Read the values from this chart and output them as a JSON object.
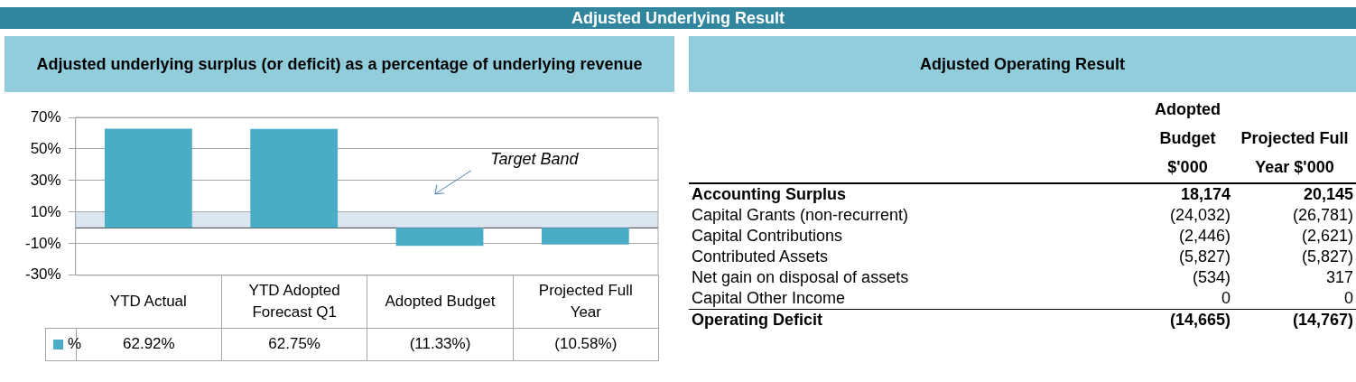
{
  "chart_data": [
    {
      "type": "bar",
      "title": "Adjusted Underlying Result",
      "subtitle": "Adjusted underlying surplus (or deficit) as a percentage of underlying revenue",
      "categories": [
        "YTD Actual",
        "YTD Adopted Forecast Q1",
        "Adopted Budget",
        "Projected Full Year"
      ],
      "series": [
        {
          "name": "%",
          "color": "#4bacc6",
          "values": [
            62.92,
            62.75,
            -11.33,
            -10.58
          ],
          "value_labels": [
            "62.92%",
            "62.75%",
            "(11.33%)",
            "(10.58%)"
          ]
        }
      ],
      "ylim": [
        -30,
        70
      ],
      "yticks": [
        {
          "value": 70,
          "label": "70%"
        },
        {
          "value": 50,
          "label": "50%"
        },
        {
          "value": 30,
          "label": "30%"
        },
        {
          "value": 10,
          "label": "10%"
        },
        {
          "value": -10,
          "label": "-10%"
        },
        {
          "value": -30,
          "label": "-30%"
        }
      ],
      "grid": "y",
      "legend": "bottom",
      "bands": [
        {
          "axis": "y",
          "from": 0,
          "to": 10,
          "label": "Target Band",
          "color": "#dce6f1"
        }
      ]
    },
    {
      "type": "other",
      "title": "Adjusted Operating Result",
      "categories": [
        "Accounting Surplus",
        "Capital Grants (non-recurrent)",
        "Capital Contributions",
        "Contributed Assets",
        "Net gain on disposal of assets",
        "Capital Other Income",
        "Operating Deficit"
      ],
      "series": [
        {
          "name": "Adopted Budget $'000",
          "values": [
            18174,
            -24032,
            -2446,
            -5827,
            -534,
            0,
            -14665
          ],
          "value_labels": [
            "18,174",
            "(24,032)",
            "(2,446)",
            "(5,827)",
            "(534)",
            "0",
            "(14,665)"
          ]
        },
        {
          "name": "Projected Full Year $'000",
          "values": [
            20145,
            -26781,
            -2621,
            -5827,
            317,
            0,
            -14767
          ],
          "value_labels": [
            "20,145",
            "(26,781)",
            "(2,621)",
            "(5,827)",
            "317",
            "0",
            "(14,767)"
          ]
        }
      ]
    }
  ]
}
